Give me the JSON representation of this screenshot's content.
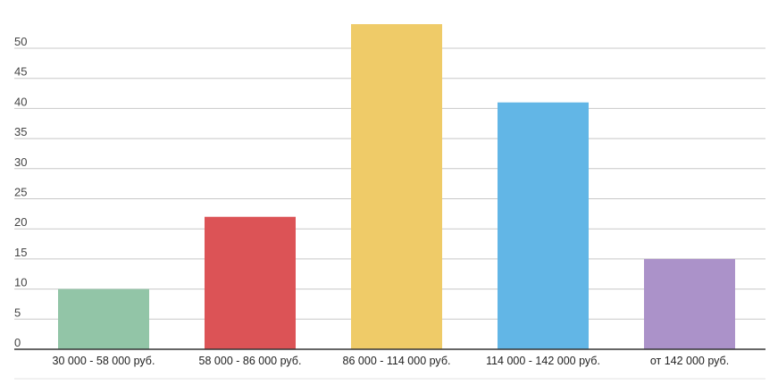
{
  "chart_data": {
    "type": "bar",
    "title": "",
    "xlabel": "",
    "ylabel": "",
    "categories": [
      "30 000 - 58 000 руб.",
      "58 000 - 86 000 руб.",
      "86 000 - 114 000 руб.",
      "114 000 - 142 000 руб.",
      "от 142 000 руб."
    ],
    "values": [
      10,
      22,
      54,
      41,
      15
    ],
    "colors": [
      "#92c5a7",
      "#dc5356",
      "#efcb68",
      "#62b6e6",
      "#ab92c9"
    ],
    "yticks": [
      0,
      5,
      10,
      15,
      20,
      25,
      30,
      35,
      40,
      45,
      50
    ],
    "ylim": [
      0,
      55
    ],
    "grid": true,
    "legend": "none"
  }
}
